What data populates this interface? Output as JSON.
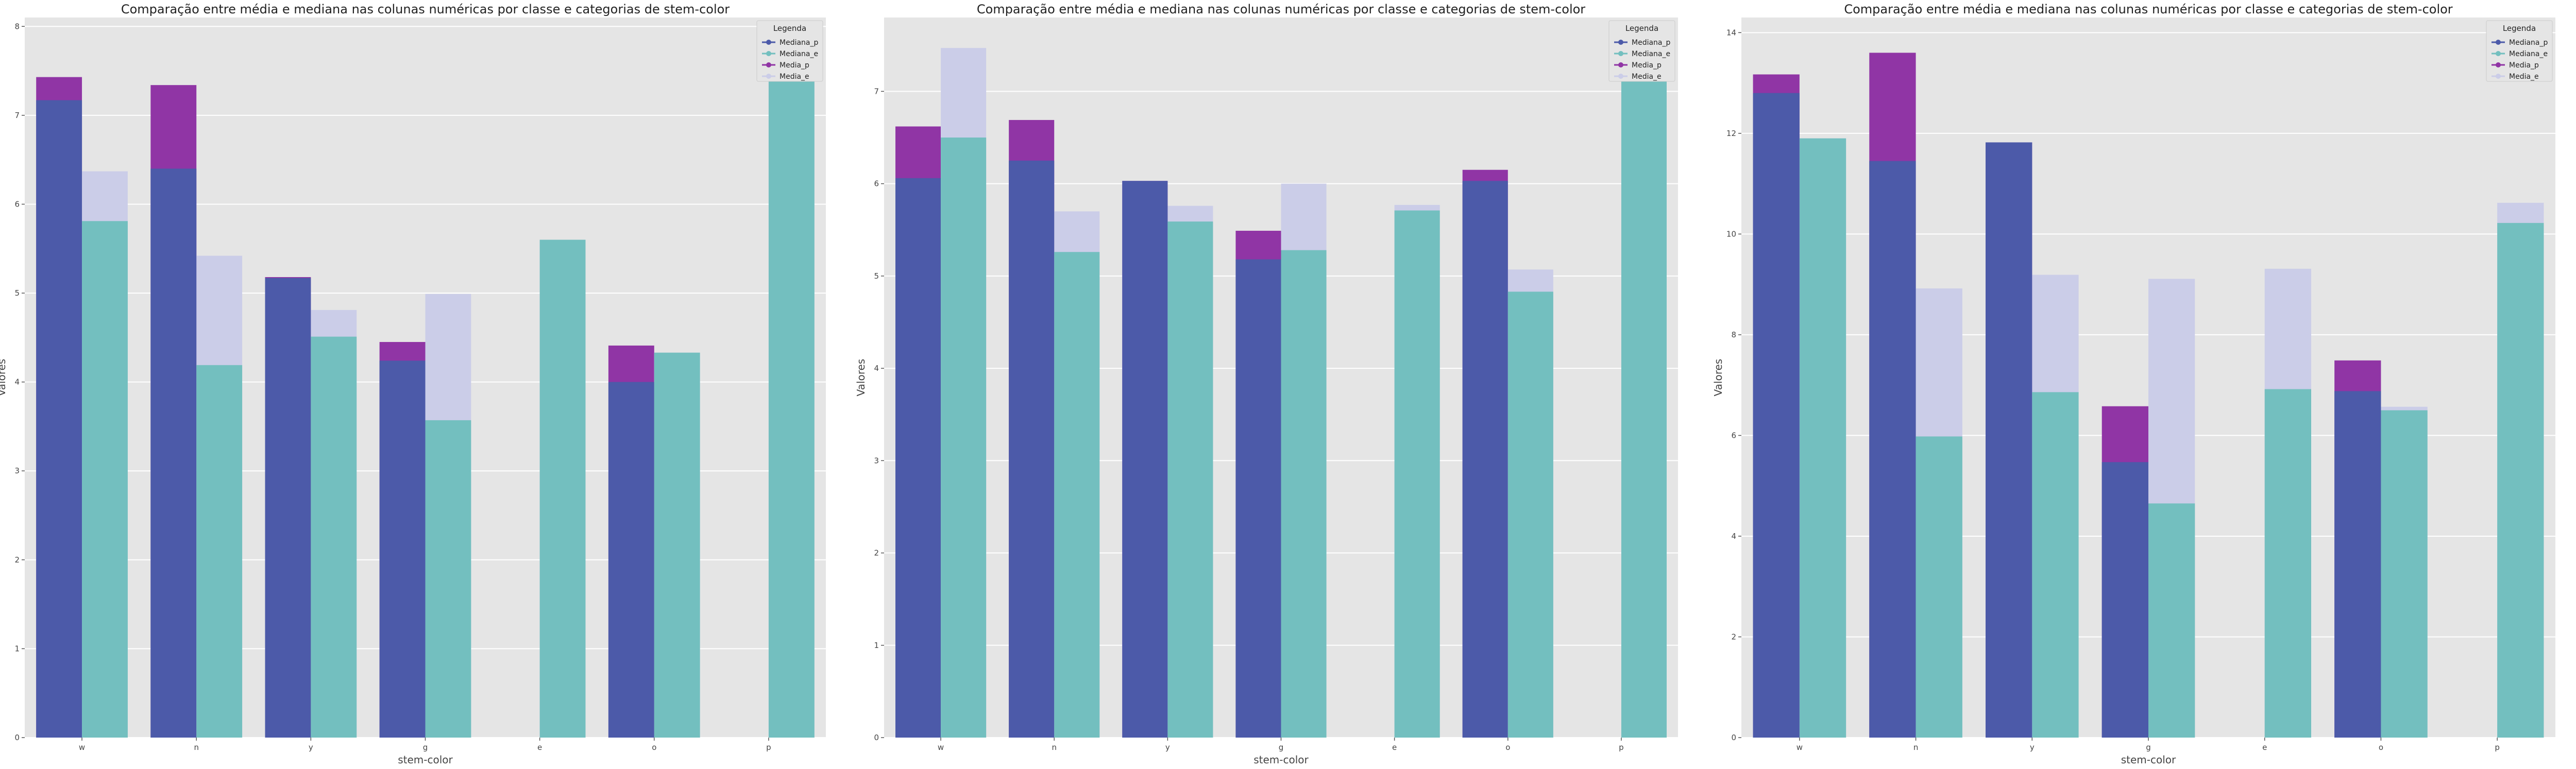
{
  "chart_data": [
    {
      "type": "bar",
      "title": "Comparação entre média e mediana nas colunas numéricas por classe e categorias de stem-color",
      "xlabel": "stem-color",
      "ylabel": "Valores",
      "categories": [
        "w",
        "n",
        "y",
        "g",
        "e",
        "o",
        "p"
      ],
      "ylim": [
        0,
        8.1
      ],
      "yticks": [
        "0",
        "1",
        "2",
        "3",
        "4",
        "5",
        "6",
        "7",
        "8"
      ],
      "grid": true,
      "legend": {
        "title": "Legenda",
        "placement": "top-right"
      },
      "series": [
        {
          "name": "Mediana_p",
          "color": "#4c5aa9",
          "values": [
            7.17,
            6.4,
            5.17,
            4.24,
            null,
            4.0,
            null
          ]
        },
        {
          "name": "Mediana_e",
          "color": "#73bfbf",
          "values": [
            5.81,
            4.19,
            4.51,
            3.57,
            5.6,
            4.33,
            7.71
          ]
        },
        {
          "name": "Media_p",
          "color": "#9035a5",
          "values": [
            7.43,
            7.34,
            5.18,
            4.45,
            null,
            4.41,
            null
          ]
        },
        {
          "name": "Media_e",
          "color": "#cbcde8",
          "values": [
            6.37,
            5.42,
            4.81,
            4.99,
            5.6,
            4.33,
            7.71
          ]
        }
      ]
    },
    {
      "type": "bar",
      "title": "Comparação entre média e mediana nas colunas numéricas por classe e categorias de stem-color",
      "xlabel": "stem-color",
      "ylabel": "Valores",
      "categories": [
        "w",
        "n",
        "y",
        "g",
        "e",
        "o",
        "p"
      ],
      "ylim": [
        0,
        7.8
      ],
      "yticks": [
        "0",
        "1",
        "2",
        "3",
        "4",
        "5",
        "6",
        "7"
      ],
      "grid": true,
      "legend": {
        "title": "Legenda",
        "placement": "top-right"
      },
      "series": [
        {
          "name": "Mediana_p",
          "color": "#4c5aa9",
          "values": [
            6.06,
            6.25,
            6.03,
            5.18,
            null,
            6.03,
            null
          ]
        },
        {
          "name": "Mediana_e",
          "color": "#73bfbf",
          "values": [
            6.5,
            5.26,
            5.59,
            5.28,
            5.71,
            4.83,
            7.14
          ]
        },
        {
          "name": "Media_p",
          "color": "#9035a5",
          "values": [
            6.62,
            6.69,
            6.03,
            5.49,
            null,
            6.15,
            null
          ]
        },
        {
          "name": "Media_e",
          "color": "#cbcde8",
          "values": [
            7.47,
            5.7,
            5.76,
            6.0,
            5.77,
            5.07,
            7.14
          ]
        }
      ]
    },
    {
      "type": "bar",
      "title": "Comparação entre média e mediana nas colunas numéricas por classe e categorias de stem-color",
      "xlabel": "stem-color",
      "ylabel": "Valores",
      "categories": [
        "w",
        "n",
        "y",
        "g",
        "e",
        "o",
        "p"
      ],
      "ylim": [
        0,
        14.3
      ],
      "yticks": [
        "0",
        "2",
        "4",
        "6",
        "8",
        "10",
        "12",
        "14"
      ],
      "grid": true,
      "legend": {
        "title": "Legenda",
        "placement": "top-right"
      },
      "series": [
        {
          "name": "Mediana_p",
          "color": "#4c5aa9",
          "values": [
            12.8,
            11.45,
            11.82,
            5.47,
            null,
            6.88,
            null
          ]
        },
        {
          "name": "Mediana_e",
          "color": "#73bfbf",
          "values": [
            11.9,
            5.98,
            6.86,
            4.65,
            6.92,
            6.5,
            10.22
          ]
        },
        {
          "name": "Media_p",
          "color": "#9035a5",
          "values": [
            13.17,
            13.6,
            11.82,
            6.58,
            null,
            7.49,
            null
          ]
        },
        {
          "name": "Media_e",
          "color": "#cbcde8",
          "values": [
            11.9,
            8.92,
            9.19,
            9.11,
            9.31,
            6.57,
            10.62
          ]
        }
      ]
    }
  ]
}
